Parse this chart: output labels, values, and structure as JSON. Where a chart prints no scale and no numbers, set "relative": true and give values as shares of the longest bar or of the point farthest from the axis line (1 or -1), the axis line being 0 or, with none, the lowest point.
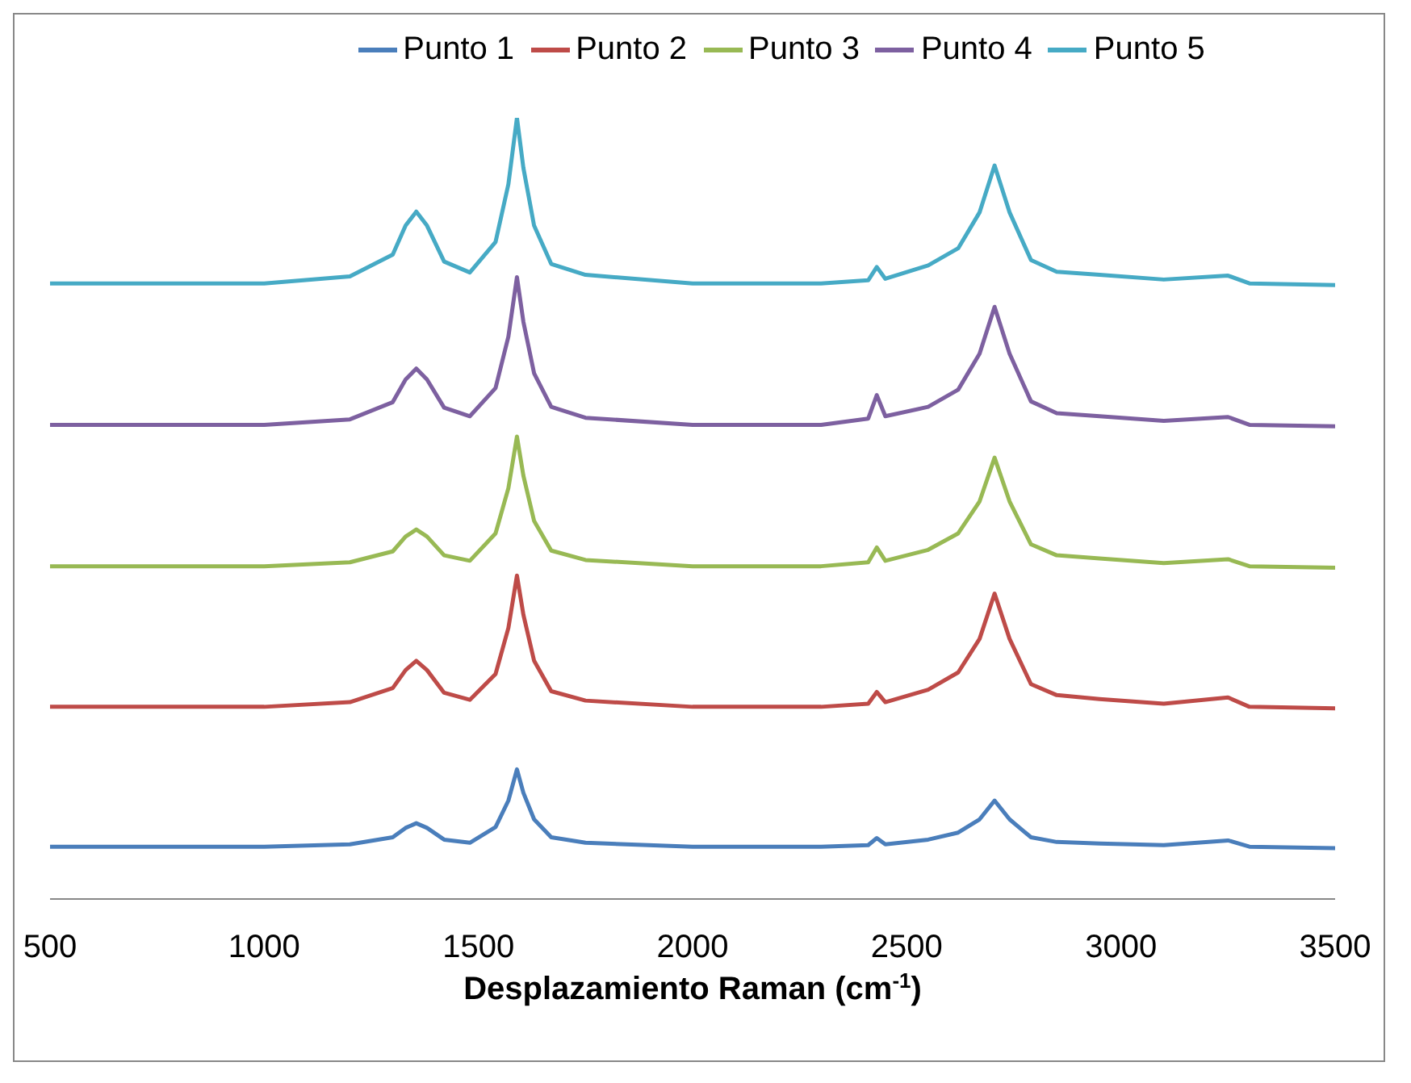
{
  "chart_data": {
    "type": "line",
    "xlabel": "Desplazamiento Raman (cm$^{-1}$)",
    "relative": true,
    "xlim": [
      500,
      3500
    ],
    "xticks": [
      500,
      1000,
      1500,
      2000,
      2500,
      3000,
      3500
    ],
    "grid": false,
    "legend": "top",
    "marker": "none",
    "line_style": "solid",
    "x": [
      500,
      1000,
      1200,
      1300,
      1330,
      1355,
      1380,
      1420,
      1480,
      1540,
      1570,
      1590,
      1605,
      1630,
      1670,
      1750,
      2000,
      2300,
      2410,
      2430,
      2450,
      2550,
      2620,
      2670,
      2705,
      2740,
      2790,
      2850,
      2950,
      3100,
      3250,
      3300,
      3500
    ],
    "series": [
      {
        "name": "Punto 1",
        "color": "#4a7ebb",
        "values": [
          0.067,
          0.067,
          0.07,
          0.079,
          0.091,
          0.097,
          0.091,
          0.076,
          0.072,
          0.092,
          0.126,
          0.166,
          0.136,
          0.102,
          0.079,
          0.072,
          0.067,
          0.067,
          0.069,
          0.078,
          0.07,
          0.076,
          0.085,
          0.102,
          0.126,
          0.102,
          0.079,
          0.073,
          0.071,
          0.069,
          0.075,
          0.067,
          0.065
        ]
      },
      {
        "name": "Punto 2",
        "color": "#be4b48",
        "values": [
          0.246,
          0.246,
          0.252,
          0.27,
          0.293,
          0.305,
          0.293,
          0.264,
          0.255,
          0.288,
          0.347,
          0.414,
          0.364,
          0.305,
          0.266,
          0.254,
          0.246,
          0.246,
          0.25,
          0.265,
          0.252,
          0.268,
          0.29,
          0.333,
          0.391,
          0.333,
          0.275,
          0.261,
          0.256,
          0.25,
          0.258,
          0.246,
          0.244
        ]
      },
      {
        "name": "Punto 3",
        "color": "#98b954",
        "values": [
          0.426,
          0.426,
          0.431,
          0.445,
          0.464,
          0.473,
          0.464,
          0.44,
          0.433,
          0.468,
          0.526,
          0.592,
          0.542,
          0.484,
          0.446,
          0.434,
          0.426,
          0.426,
          0.431,
          0.45,
          0.433,
          0.447,
          0.468,
          0.509,
          0.565,
          0.509,
          0.454,
          0.44,
          0.436,
          0.43,
          0.435,
          0.426,
          0.424
        ]
      },
      {
        "name": "Punto 4",
        "color": "#7d60a0",
        "values": [
          0.607,
          0.607,
          0.614,
          0.636,
          0.665,
          0.679,
          0.665,
          0.629,
          0.618,
          0.654,
          0.72,
          0.796,
          0.739,
          0.673,
          0.63,
          0.616,
          0.607,
          0.607,
          0.615,
          0.645,
          0.618,
          0.63,
          0.652,
          0.698,
          0.758,
          0.698,
          0.637,
          0.622,
          0.618,
          0.612,
          0.617,
          0.607,
          0.605
        ]
      },
      {
        "name": "Punto 5",
        "color": "#46aac5",
        "values": [
          0.788,
          0.788,
          0.797,
          0.825,
          0.862,
          0.88,
          0.862,
          0.816,
          0.802,
          0.841,
          0.915,
          1.0,
          0.936,
          0.862,
          0.813,
          0.799,
          0.788,
          0.788,
          0.792,
          0.809,
          0.794,
          0.811,
          0.833,
          0.879,
          0.939,
          0.879,
          0.818,
          0.803,
          0.799,
          0.793,
          0.798,
          0.788,
          0.786
        ]
      }
    ]
  }
}
